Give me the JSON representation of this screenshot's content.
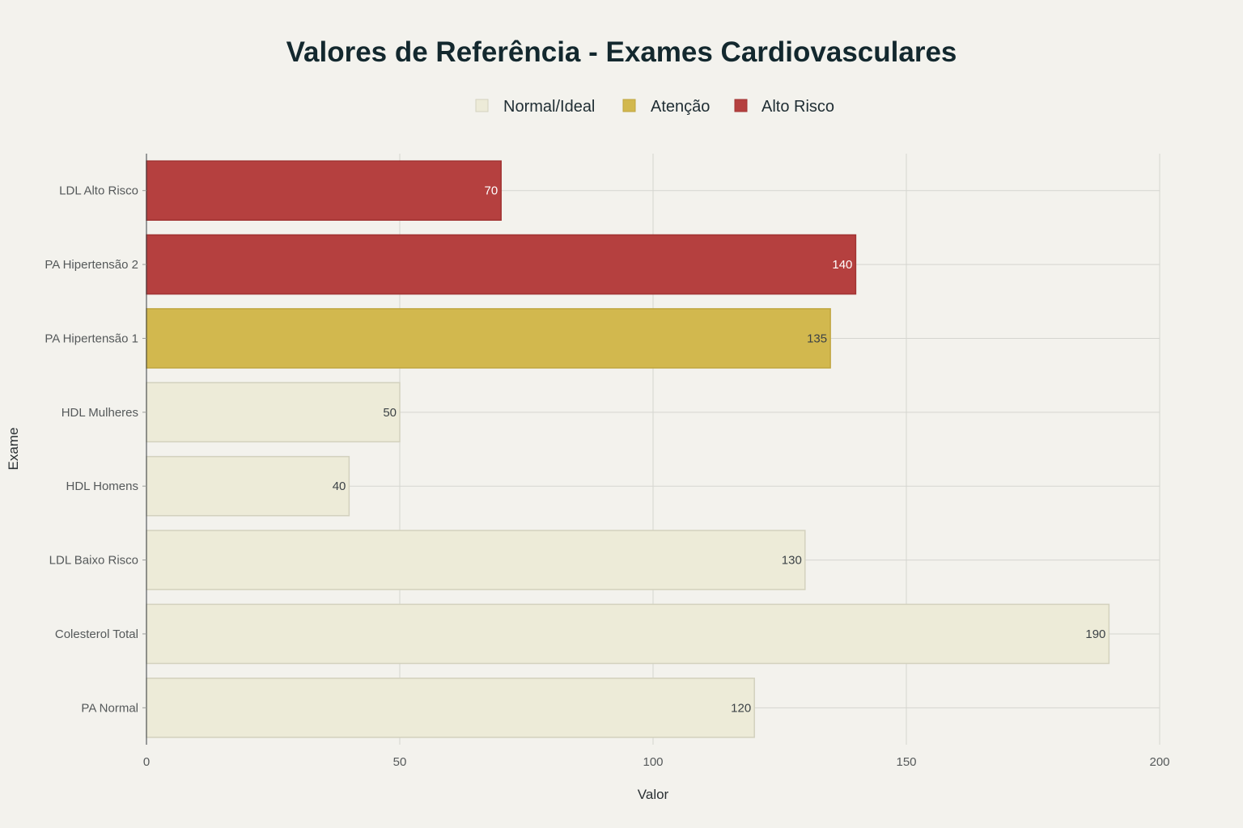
{
  "chart_data": {
    "type": "bar",
    "orientation": "horizontal",
    "title": "Valores de Referência - Exames Cardiovasculares",
    "xlabel": "Valor",
    "ylabel": "Exame",
    "xlim": [
      0,
      200
    ],
    "xticks": [
      0,
      50,
      100,
      150,
      200
    ],
    "grid": true,
    "legend_position": "top-center",
    "legend": [
      {
        "name": "Normal/Ideal",
        "color": "#EDEBD8"
      },
      {
        "name": "Atenção",
        "color": "#D2B84E"
      },
      {
        "name": "Alto Risco",
        "color": "#B5403F"
      }
    ],
    "categories": [
      "LDL Alto Risco",
      "PA Hipertensão 2",
      "PA Hipertensão 1",
      "HDL Mulheres",
      "HDL Homens",
      "LDL Baixo Risco",
      "Colesterol Total",
      "PA Normal"
    ],
    "values": [
      70,
      140,
      135,
      50,
      40,
      130,
      190,
      120
    ],
    "status": [
      "Alto Risco",
      "Alto Risco",
      "Atenção",
      "Normal/Ideal",
      "Normal/Ideal",
      "Normal/Ideal",
      "Normal/Ideal",
      "Normal/Ideal"
    ]
  }
}
